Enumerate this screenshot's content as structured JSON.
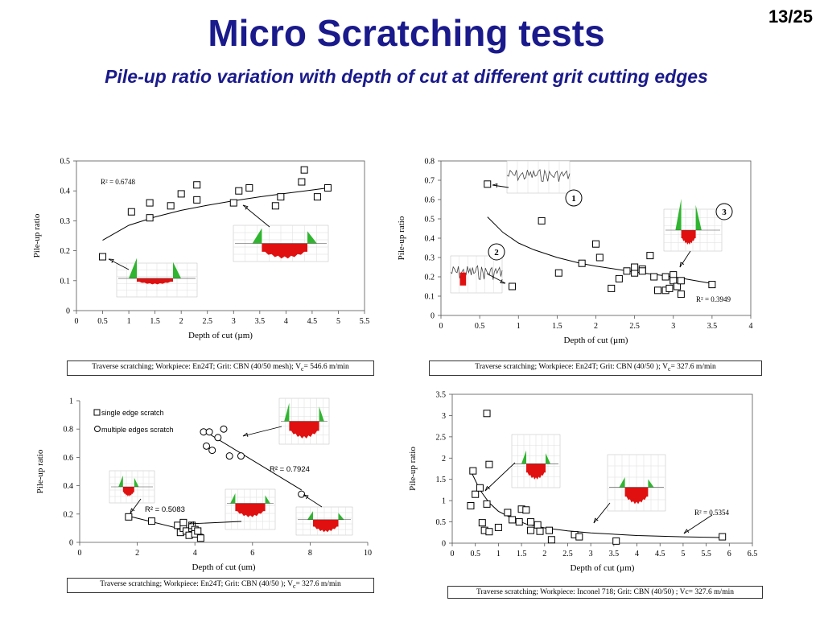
{
  "header": {
    "title": "Micro Scratching tests",
    "subtitle": "Pile-up ratio variation with depth of cut at different grit cutting edges",
    "slide_number": "13/25"
  },
  "colors": {
    "title": "#1a1a8c",
    "profile_fill": "#e01010",
    "pileup_fill": "#2fb52f"
  },
  "chart_data": [
    {
      "type": "scatter",
      "xlabel": "Depth of cut (µm)",
      "ylabel": "Pile-up ratio",
      "xlim": [
        0,
        5.5
      ],
      "ylim": [
        0,
        0.5
      ],
      "xticks": [
        "0",
        "0.5",
        "1",
        "1.5",
        "2",
        "2.5",
        "3",
        "3.5",
        "4",
        "4.5",
        "5",
        "5.5"
      ],
      "yticks": [
        "0",
        "0.1",
        "0.2",
        "0.3",
        "0.4",
        "0.5"
      ],
      "r2_label": "R² = 0.6748",
      "series": [
        {
          "x": [
            0.5,
            1.05,
            1.4,
            1.4,
            1.8,
            2.0,
            2.3,
            2.3,
            3.0,
            3.1,
            3.3,
            3.8,
            3.9,
            4.3,
            4.35,
            4.6,
            4.8
          ],
          "y": [
            0.18,
            0.33,
            0.31,
            0.36,
            0.35,
            0.39,
            0.37,
            0.42,
            0.36,
            0.4,
            0.41,
            0.35,
            0.38,
            0.43,
            0.47,
            0.38,
            0.41
          ]
        }
      ],
      "fit": {
        "x": [
          0.5,
          1,
          1.5,
          2,
          2.5,
          3,
          3.5,
          4,
          4.5,
          4.8
        ],
        "y": [
          0.235,
          0.285,
          0.313,
          0.335,
          0.352,
          0.367,
          0.38,
          0.392,
          0.403,
          0.41
        ]
      },
      "caption_parts": [
        "Traverse scratching; Workpiece: En24T; Grit: CBN (40/50 mesh); V",
        "c",
        "= 546.6 m/min"
      ]
    },
    {
      "type": "scatter",
      "xlabel": "Depth of cut (µm)",
      "ylabel": "Pile-up ratio",
      "xlim": [
        0,
        4
      ],
      "ylim": [
        0,
        0.8
      ],
      "xticks": [
        "0",
        "0.5",
        "1",
        "1.5",
        "2",
        "2.5",
        "3",
        "3.5",
        "4"
      ],
      "yticks": [
        "0",
        "0.1",
        "0.2",
        "0.3",
        "0.4",
        "0.5",
        "0.6",
        "0.7",
        "0.8"
      ],
      "r2_label": "R² = 0.3949",
      "callouts": [
        "1",
        "2",
        "3"
      ],
      "series": [
        {
          "x": [
            0.6,
            0.92,
            1.3,
            1.52,
            1.82,
            2.0,
            2.05,
            2.2,
            2.3,
            2.4,
            2.5,
            2.5,
            2.6,
            2.6,
            2.7,
            2.75,
            2.8,
            2.9,
            2.9,
            2.95,
            3.0,
            3.0,
            3.05,
            3.1,
            3.1,
            3.5
          ],
          "y": [
            0.68,
            0.15,
            0.49,
            0.22,
            0.27,
            0.37,
            0.3,
            0.14,
            0.19,
            0.23,
            0.22,
            0.25,
            0.24,
            0.23,
            0.31,
            0.2,
            0.13,
            0.2,
            0.13,
            0.14,
            0.21,
            0.18,
            0.15,
            0.18,
            0.11,
            0.16
          ]
        }
      ],
      "fit": {
        "x": [
          0.6,
          0.8,
          1,
          1.2,
          1.5,
          1.8,
          2.0,
          2.5,
          3.0,
          3.5
        ],
        "y": [
          0.51,
          0.43,
          0.375,
          0.34,
          0.3,
          0.27,
          0.255,
          0.225,
          0.2,
          0.165
        ]
      },
      "caption_parts": [
        "Traverse scratching; Workpiece: En24T; Grit: CBN (40/50 ); V",
        "c",
        "= 327.6 m/min"
      ]
    },
    {
      "type": "scatter",
      "xlabel": "Depth of cut (um)",
      "ylabel": "Pile-up ratio",
      "xlim": [
        0,
        10
      ],
      "ylim": [
        0,
        1
      ],
      "xticks": [
        "0",
        "2",
        "4",
        "6",
        "8",
        "10"
      ],
      "yticks": [
        "0",
        "0.2",
        "0.4",
        "0.6",
        "0.8",
        "1"
      ],
      "legend": [
        "single edge scratch",
        "multiple edges scratch"
      ],
      "legend_position": "top-left",
      "r2_labels": [
        "R² = 0.7924",
        "R² = 0.5083"
      ],
      "series": [
        {
          "name": "single edge scratch",
          "x": [
            1.7,
            2.5,
            3.4,
            3.5,
            3.6,
            3.6,
            3.7,
            3.8,
            3.9,
            3.9,
            4.0,
            4.0,
            4.1,
            4.2
          ],
          "y": [
            0.18,
            0.15,
            0.12,
            0.07,
            0.1,
            0.14,
            0.08,
            0.05,
            0.1,
            0.12,
            0.09,
            0.06,
            0.08,
            0.03
          ]
        },
        {
          "name": "multiple edges scratch",
          "x": [
            4.3,
            4.5,
            4.4,
            4.6,
            4.8,
            5.0,
            5.2,
            5.6,
            7.7
          ],
          "y": [
            0.78,
            0.78,
            0.68,
            0.65,
            0.74,
            0.8,
            0.61,
            0.61,
            0.34
          ]
        }
      ],
      "fit_single": {
        "x": [
          1.7,
          4.3
        ],
        "y": [
          0.185,
          0.055
        ]
      },
      "fit_multiple": {
        "x": [
          4.3,
          7.7
        ],
        "y": [
          0.79,
          0.37
        ]
      },
      "caption_parts": [
        "Traverse scratching; Workpiece: En24T; Grit: CBN (40/50 ); V",
        "c",
        "= 327.6 m/min"
      ]
    },
    {
      "type": "scatter",
      "xlabel": "Depth of cut (µm)",
      "ylabel": "Pile-up ratio",
      "xlim": [
        0,
        6.5
      ],
      "ylim": [
        0,
        3.5
      ],
      "xticks": [
        "0",
        "0.5",
        "1",
        "1.5",
        "2",
        "2.5",
        "3",
        "3.5",
        "4",
        "4.5",
        "5",
        "5.5",
        "6",
        "6.5"
      ],
      "yticks": [
        "0",
        "0.5",
        "1",
        "1.5",
        "2",
        "2.5",
        "3",
        "3.5"
      ],
      "r2_label": "R² = 0.5354",
      "series": [
        {
          "x": [
            0.4,
            0.45,
            0.5,
            0.6,
            0.65,
            0.7,
            0.75,
            0.75,
            0.8,
            0.8,
            1.0,
            1.2,
            1.3,
            1.45,
            1.5,
            1.6,
            1.7,
            1.7,
            1.85,
            1.9,
            2.1,
            2.15,
            2.65,
            2.75,
            3.55,
            5.85
          ],
          "y": [
            0.88,
            1.7,
            1.15,
            1.3,
            0.48,
            0.3,
            3.05,
            0.92,
            1.85,
            0.27,
            0.37,
            0.72,
            0.55,
            0.5,
            0.8,
            0.78,
            0.3,
            0.5,
            0.43,
            0.28,
            0.3,
            0.08,
            0.2,
            0.15,
            0.05,
            0.15
          ]
        }
      ],
      "fit": {
        "x": [
          0.4,
          0.6,
          0.8,
          1.0,
          1.3,
          1.6,
          2.0,
          2.5,
          3,
          4,
          5,
          5.9
        ],
        "y": [
          1.7,
          1.25,
          0.95,
          0.75,
          0.58,
          0.45,
          0.36,
          0.29,
          0.24,
          0.18,
          0.15,
          0.13
        ]
      },
      "caption_parts": [
        "Traverse scratching; Workpiece: Inconel 718; Grit: CBN (40/50) ; Vc= 327.6 m/min"
      ]
    }
  ]
}
